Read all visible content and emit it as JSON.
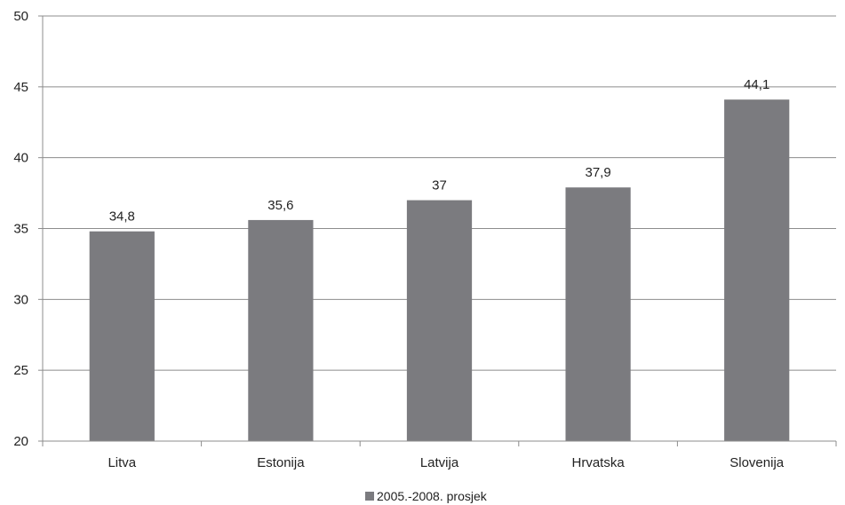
{
  "chart_data": {
    "type": "bar",
    "categories": [
      "Litva",
      "Estonija",
      "Latvija",
      "Hrvatska",
      "Slovenija"
    ],
    "series": [
      {
        "name": "2005.-2008. prosjek",
        "values": [
          34.8,
          35.6,
          37,
          37.9,
          44.1
        ],
        "value_labels": [
          "34,8",
          "35,6",
          "37",
          "37,9",
          "44,1"
        ],
        "color": "#7b7b7f"
      }
    ],
    "y_ticks": [
      "20",
      "25",
      "30",
      "35",
      "40",
      "45",
      "50"
    ],
    "ylim": [
      20,
      50
    ],
    "title": "",
    "xlabel": "",
    "ylabel": "",
    "grid": true,
    "legend_position": "bottom"
  }
}
